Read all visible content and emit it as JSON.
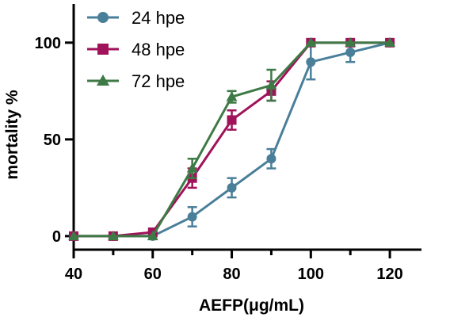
{
  "chart_data": {
    "type": "line",
    "title": "",
    "xlabel": "AEFP(μg/mL)",
    "ylabel": "mortality %",
    "xlim": [
      40,
      128
    ],
    "ylim": [
      -7,
      120
    ],
    "xticks": [
      40,
      60,
      80,
      100,
      120
    ],
    "yticks": [
      0,
      50,
      100
    ],
    "grid": false,
    "legend_position": "top-left",
    "series": [
      {
        "name": "24 hpe",
        "color": "#4a7f99",
        "marker": "circle",
        "points": [
          {
            "x": 40,
            "y": 0,
            "err": 0
          },
          {
            "x": 50,
            "y": 0,
            "err": 0
          },
          {
            "x": 60,
            "y": 0,
            "err": 0
          },
          {
            "x": 70,
            "y": 10,
            "err": 5
          },
          {
            "x": 80,
            "y": 25,
            "err": 5
          },
          {
            "x": 90,
            "y": 40,
            "err": 5
          },
          {
            "x": 100,
            "y": 90,
            "err": 9
          },
          {
            "x": 110,
            "y": 95,
            "err": 5
          },
          {
            "x": 120,
            "y": 100,
            "err": 0
          }
        ]
      },
      {
        "name": "48 hpe",
        "color": "#a0135a",
        "marker": "square",
        "points": [
          {
            "x": 40,
            "y": 0,
            "err": 0
          },
          {
            "x": 50,
            "y": 0,
            "err": 0
          },
          {
            "x": 60,
            "y": 2,
            "err": 0
          },
          {
            "x": 70,
            "y": 30,
            "err": 5
          },
          {
            "x": 80,
            "y": 60,
            "err": 5
          },
          {
            "x": 90,
            "y": 75,
            "err": 5
          },
          {
            "x": 100,
            "y": 100,
            "err": 0
          },
          {
            "x": 110,
            "y": 100,
            "err": 0
          },
          {
            "x": 120,
            "y": 100,
            "err": 0
          }
        ]
      },
      {
        "name": "72 hpe",
        "color": "#3e7a45",
        "marker": "triangle",
        "points": [
          {
            "x": 40,
            "y": 0,
            "err": 0
          },
          {
            "x": 50,
            "y": 0,
            "err": 0
          },
          {
            "x": 60,
            "y": 0,
            "err": 0
          },
          {
            "x": 70,
            "y": 35,
            "err": 5
          },
          {
            "x": 80,
            "y": 72,
            "err": 3
          },
          {
            "x": 90,
            "y": 78,
            "err": 8
          },
          {
            "x": 100,
            "y": 100,
            "err": 0
          },
          {
            "x": 110,
            "y": 100,
            "err": 0
          },
          {
            "x": 120,
            "y": 100,
            "err": 0
          }
        ]
      }
    ]
  }
}
